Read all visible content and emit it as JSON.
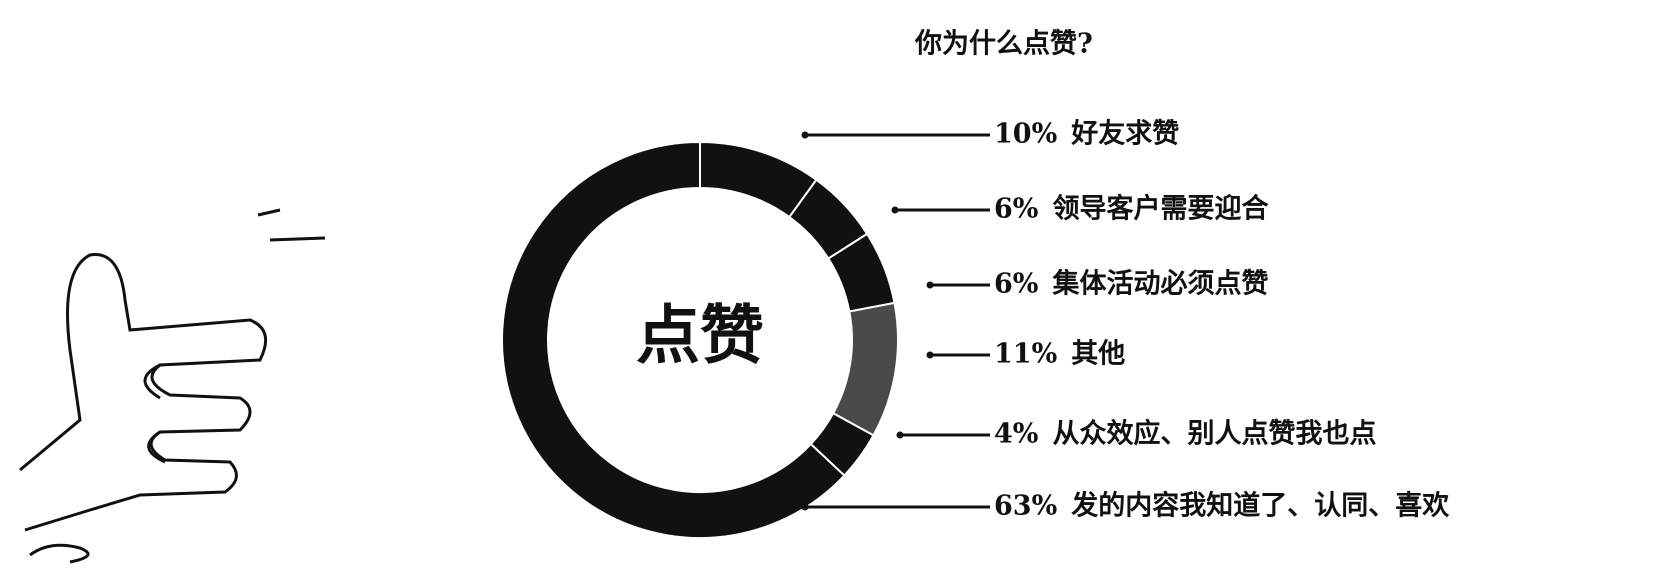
{
  "chart_data": {
    "type": "pie",
    "title": "你为什么点赞?",
    "center_label": "点赞",
    "categories": [
      "好友求赞",
      "领导客户需要迎合",
      "集体活动必须点赞",
      "其他",
      "从众效应、别人点赞我也点",
      "发的内容我知道了、认同、喜欢"
    ],
    "values": [
      10,
      6,
      6,
      11,
      4,
      63
    ],
    "value_labels": [
      "10%",
      "6%",
      "6%",
      "11%",
      "4%",
      "63%"
    ],
    "colors": [
      "#111111",
      "#111111",
      "#111111",
      "#4a4a4a",
      "#111111",
      "#111111"
    ]
  }
}
